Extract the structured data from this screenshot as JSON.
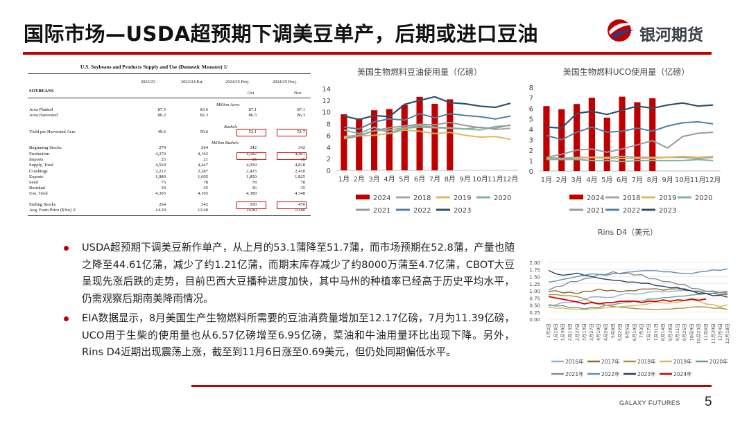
{
  "header": {
    "title": "国际市场—USDA超预期下调美豆单产，后期或进口豆油",
    "logo_text": "银河期货"
  },
  "footer": {
    "brand": "GALAXY FUTURES",
    "page_number": "5"
  },
  "usda_table": {
    "title": "U.S. Soybeans and Products Supply and Use (Domestic Measure)  1/",
    "commodity": "SOYBEANS",
    "columns": [
      "2022/23",
      "2023/24 Est.",
      "2024/25 Proj.",
      "2024/25 Proj."
    ],
    "subcolumns": [
      "",
      "",
      "Oct",
      "Nov"
    ],
    "sections": {
      "acres": "Million Acres",
      "bushels": "Bushels",
      "million_bushels": "Million Bushels"
    },
    "rows": [
      {
        "label": "Area Planted",
        "v": [
          "87.5",
          "83.6",
          "87.1",
          "87.1"
        ]
      },
      {
        "label": "Area Harvested",
        "v": [
          "86.2",
          "82.3",
          "86.3",
          "86.3"
        ]
      },
      {
        "label": "Yield per Harvested Acre",
        "v": [
          "49.6",
          "50.6",
          "53.1",
          "51.7"
        ]
      },
      {
        "label": "Beginning Stocks",
        "v": [
          "274",
          "264",
          "342",
          "342"
        ]
      },
      {
        "label": "Production",
        "v": [
          "4,270",
          "4,162",
          "4,582",
          "4,461"
        ]
      },
      {
        "label": "Imports",
        "v": [
          "25",
          "21",
          "15",
          "15"
        ]
      },
      {
        "label": "  Supply, Total",
        "v": [
          "4,569",
          "4,447",
          "4,939",
          "4,818"
        ]
      },
      {
        "label": "Crushings",
        "v": [
          "2,212",
          "2,287",
          "2,425",
          "2,410"
        ]
      },
      {
        "label": "Exports",
        "v": [
          "1,980",
          "1,695",
          "1,850",
          "1,825"
        ]
      },
      {
        "label": "Seed",
        "v": [
          "75",
          "78",
          "78",
          "78"
        ]
      },
      {
        "label": "Residual",
        "v": [
          "39",
          "45",
          "36",
          "35"
        ]
      },
      {
        "label": "  Use, Total",
        "v": [
          "4,305",
          "4,105",
          "4,389",
          "4,348"
        ]
      },
      {
        "label": "Ending Stocks",
        "v": [
          "264",
          "342",
          "550",
          "470"
        ]
      },
      {
        "label": "Avg. Farm Price ($/bu)  2/",
        "v": [
          "14.20",
          "12.40",
          "10.80",
          "10.80"
        ]
      }
    ]
  },
  "bullets": [
    "USDA超预期下调美豆新作单产，从上月的53.1蒲降至51.7蒲，而市场预期在52.8蒲，产量也随之降至44.61亿蒲，减少了约1.21亿蒲，而期末库存减少了约8000万蒲至4.7亿蒲，CBOT大豆呈现先涨后跌的走势，目前巴西大豆播种进度加快，其中马州的种植率已经高于历史平均水平，仍需观察后期南美降雨情况。",
    "EIA数据显示，8月美国生产生物燃料所需要的豆油消费量增加至12.17亿磅，7月为11.39亿磅，UCO用于生柴的使用量也从6.57亿磅增至6.95亿磅，菜油和牛油用量环比出现下降。另外，Rins D4近期出现震荡上涨，截至到11月6日涨至0.69美元，但仍处同期偏低水平。"
  ],
  "colors": {
    "accent": "#c00000",
    "2024": "#c00000",
    "2018": "#a7a89a",
    "2019": "#e3b55e",
    "2020": "#7fb3a2",
    "2021": "#9a9a9a",
    "2022": "#4f7fa6",
    "2023": "#2d4f6e",
    "2016": "#8db1d8",
    "2017": "#8a6d2c",
    "rins2018": "#b08a45",
    "rins2019": "#e3b55e",
    "rins2020": "#6a9e8f",
    "rins2021": "#8a8a8a",
    "rins2022": "#5f8fb6",
    "rins2023": "#2d3f5e",
    "rins2024": "#d40000"
  },
  "chart_data": [
    {
      "type": "bar+line",
      "title": "美国生物燃料豆油使用量（亿磅）",
      "categories": [
        "1月",
        "2月",
        "3月",
        "4月",
        "5月",
        "6月",
        "7月",
        "8月",
        "9月",
        "10月",
        "11月",
        "12月"
      ],
      "ylim": [
        0,
        14
      ],
      "yticks": [
        "0",
        "2",
        "4",
        "6",
        "8",
        "10",
        "12",
        "14"
      ],
      "bar_series": {
        "name": "2024",
        "values": [
          9.6,
          8.9,
          10.3,
          10.5,
          11.2,
          12.6,
          11.4,
          12.17,
          null,
          null,
          null,
          null
        ]
      },
      "series": [
        {
          "name": "2018",
          "values": [
            5.8,
            6.0,
            6.8,
            6.9,
            7.3,
            7.7,
            7.4,
            7.3,
            7.1,
            7.4,
            7.0,
            7.2
          ]
        },
        {
          "name": "2019",
          "values": [
            5.6,
            5.9,
            6.0,
            6.3,
            6.9,
            6.7,
            6.3,
            6.5,
            6.0,
            5.7,
            5.8,
            5.3
          ]
        },
        {
          "name": "2020",
          "values": [
            6.9,
            6.3,
            7.4,
            6.4,
            7.2,
            7.4,
            7.3,
            7.2,
            7.1,
            6.9,
            7.5,
            7.7
          ]
        },
        {
          "name": "2021",
          "values": [
            5.4,
            5.9,
            6.8,
            7.3,
            7.6,
            7.9,
            7.8,
            8.2,
            7.7,
            7.3,
            7.2,
            7.8
          ]
        },
        {
          "name": "2022",
          "values": [
            7.4,
            7.1,
            8.3,
            8.8,
            8.6,
            9.7,
            9.0,
            9.7,
            9.4,
            9.2,
            8.8,
            9.3
          ]
        },
        {
          "name": "2023",
          "values": [
            9.3,
            8.7,
            9.4,
            9.2,
            11.3,
            12.0,
            12.6,
            11.6,
            11.4,
            11.0,
            10.8,
            11.5
          ]
        }
      ],
      "legend": [
        "2024",
        "2018",
        "2019",
        "2020",
        "2021",
        "2022",
        "2023"
      ]
    },
    {
      "type": "bar+line",
      "title": "美国生物燃料UCO使用量（亿磅）",
      "categories": [
        "1月",
        "2月",
        "3月",
        "4月",
        "5月",
        "6月",
        "7月",
        "8月",
        "9月",
        "10月",
        "11月",
        "12月"
      ],
      "ylim": [
        0,
        8
      ],
      "yticks": [
        "0",
        "1",
        "2",
        "3",
        "4",
        "5",
        "6",
        "7",
        "8"
      ],
      "bar_series": {
        "name": "2024",
        "values": [
          6.2,
          5.9,
          6.4,
          7.0,
          5.1,
          7.1,
          6.57,
          6.95,
          null,
          null,
          null,
          null
        ]
      },
      "series": [
        {
          "name": "2018",
          "values": [
            1.3,
            1.2,
            1.3,
            1.3,
            1.3,
            1.4,
            1.3,
            1.3,
            1.3,
            1.3,
            1.2,
            1.3
          ]
        },
        {
          "name": "2019",
          "values": [
            1.2,
            1.1,
            1.2,
            1.3,
            1.2,
            1.2,
            1.2,
            1.2,
            1.3,
            1.4,
            1.3,
            1.4
          ]
        },
        {
          "name": "2020",
          "values": [
            1.1,
            1.1,
            1.1,
            1.0,
            1.0,
            0.9,
            1.0,
            1.0,
            1.0,
            1.0,
            1.1,
            1.0
          ]
        },
        {
          "name": "2021",
          "values": [
            1.3,
            1.6,
            2.0,
            2.1,
            1.8,
            2.1,
            2.5,
            2.9,
            2.2,
            3.3,
            3.6,
            3.7
          ]
        },
        {
          "name": "2022",
          "values": [
            3.4,
            3.0,
            3.7,
            4.2,
            3.7,
            3.8,
            4.1,
            3.8,
            4.3,
            4.6,
            4.7,
            4.5
          ]
        },
        {
          "name": "2023",
          "values": [
            4.2,
            4.1,
            5.5,
            5.7,
            5.4,
            5.8,
            6.2,
            6.0,
            6.3,
            6.5,
            6.2,
            6.3
          ]
        }
      ],
      "legend": [
        "2024",
        "2018",
        "2019",
        "2020",
        "2021",
        "2022",
        "2023"
      ]
    },
    {
      "type": "line",
      "title": "Rins D4（美元）",
      "ylim": [
        0,
        2.0
      ],
      "yticks": [
        "0.00",
        "0.25",
        "0.50",
        "0.75",
        "1.00",
        "1.25",
        "1.50",
        "1.75",
        "2.00"
      ],
      "x_ticks": [
        "1月2日",
        "1月16日",
        "1月30日",
        "2月13日",
        "2月27日",
        "3月13日",
        "3月27日",
        "4月10日",
        "4月24日",
        "5月8日",
        "5月22日",
        "6月5日",
        "6月19日",
        "7月3日",
        "7月17日",
        "7月31日",
        "8月14日",
        "8月28日",
        "9月11日",
        "9月25日",
        "10月9日",
        "10月23日",
        "11月6日",
        "11月20日",
        "12月4日",
        "12月18日"
      ],
      "series": [
        {
          "name": "2016年",
          "values": [
            0.45,
            0.52,
            0.58,
            0.6,
            0.62,
            0.7,
            0.78,
            0.8,
            0.76,
            0.78,
            0.85,
            0.92,
            0.88,
            0.9,
            0.95,
            0.97,
            0.96,
            0.98,
            1.0,
            1.02,
            1.0,
            0.99,
            0.98,
            0.96,
            0.95,
            0.94
          ]
        },
        {
          "name": "2017年",
          "values": [
            1.0,
            0.98,
            0.95,
            0.93,
            0.92,
            0.96,
            1.0,
            1.04,
            1.02,
            1.0,
            0.98,
            0.99,
            1.02,
            1.05,
            1.08,
            1.06,
            1.04,
            1.05,
            1.08,
            1.06,
            1.0,
            0.95,
            0.92,
            0.9,
            0.88,
            0.86
          ]
        },
        {
          "name": "2018年",
          "values": [
            0.88,
            0.86,
            0.84,
            0.82,
            0.8,
            0.72,
            0.62,
            0.55,
            0.5,
            0.45,
            0.42,
            0.4,
            0.38,
            0.36,
            0.35,
            0.34,
            0.35,
            0.36,
            0.38,
            0.4,
            0.42,
            0.45,
            0.42,
            0.4,
            0.38,
            0.36
          ]
        },
        {
          "name": "2019年",
          "values": [
            0.42,
            0.4,
            0.38,
            0.36,
            0.35,
            0.34,
            0.36,
            0.38,
            0.4,
            0.42,
            0.44,
            0.46,
            0.48,
            0.5,
            0.55,
            0.6,
            0.58,
            0.56,
            0.6,
            0.65,
            0.7,
            0.62,
            0.55,
            0.5,
            0.45,
            0.5
          ]
        },
        {
          "name": "2020年",
          "values": [
            0.5,
            0.48,
            0.46,
            0.42,
            0.4,
            0.38,
            0.4,
            0.42,
            0.48,
            0.52,
            0.55,
            0.6,
            0.62,
            0.65,
            0.7,
            0.72,
            0.75,
            0.78,
            0.8,
            0.82,
            0.85,
            0.88,
            0.9,
            0.92,
            0.95,
            0.98
          ]
        },
        {
          "name": "2021年",
          "values": [
            1.05,
            1.12,
            1.2,
            1.3,
            1.35,
            1.4,
            1.48,
            1.55,
            1.6,
            1.65,
            1.62,
            1.6,
            1.58,
            1.55,
            1.45,
            1.4,
            1.35,
            1.3,
            1.25,
            1.2,
            1.1,
            1.05,
            1.0,
            0.98,
            0.95,
            0.9
          ]
        },
        {
          "name": "2022年",
          "values": [
            1.3,
            1.35,
            1.4,
            1.45,
            1.5,
            1.55,
            1.6,
            1.58,
            1.55,
            1.6,
            1.62,
            1.65,
            1.68,
            1.7,
            1.72,
            1.7,
            1.68,
            1.66,
            1.64,
            1.6,
            1.62,
            1.65,
            1.7,
            1.72,
            1.74,
            1.76
          ]
        },
        {
          "name": "2023年",
          "values": [
            1.72,
            1.6,
            1.55,
            1.58,
            1.62,
            1.55,
            1.5,
            1.45,
            1.4,
            1.38,
            1.35,
            1.32,
            1.3,
            1.28,
            1.25,
            1.2,
            1.15,
            1.12,
            1.1,
            1.05,
            0.98,
            0.92,
            0.88,
            0.85,
            0.82,
            0.8
          ]
        },
        {
          "name": "2024年",
          "values": [
            0.8,
            0.75,
            0.7,
            0.66,
            0.6,
            0.55,
            0.58,
            0.55,
            0.57,
            0.6,
            0.62,
            0.65,
            0.62,
            0.6,
            0.62,
            0.64,
            0.66,
            0.65,
            0.66,
            0.68,
            0.69,
            0.69,
            0.69,
            null,
            null,
            null
          ]
        }
      ],
      "legend": [
        "2016年",
        "2017年",
        "2018年",
        "2019年",
        "2020年",
        "2021年",
        "2022年",
        "2023年",
        "2024年"
      ]
    }
  ]
}
